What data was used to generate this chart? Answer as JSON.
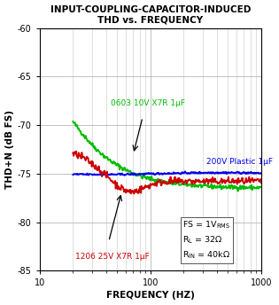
{
  "title": "INPUT-COUPLING-CAPACITOR-INDUCED\nTHD vs. FREQUENCY",
  "xlabel": "FREQUENCY (HZ)",
  "ylabel": "THD+N (dB FS)",
  "xlim": [
    10,
    1000
  ],
  "ylim": [
    -85,
    -60
  ],
  "yticks": [
    -85,
    -80,
    -75,
    -70,
    -65,
    -60
  ],
  "bg_color": "#ffffff",
  "line_green_label": "0603 10V X7R 1μF",
  "line_blue_label": "200V Plastic 1μF",
  "line_red_label": "1206 25V X7R 1μF",
  "green_color": "#00bb00",
  "blue_color": "#0000ee",
  "red_color": "#cc0000",
  "figsize": [
    3.15,
    3.44
  ],
  "dpi": 100
}
